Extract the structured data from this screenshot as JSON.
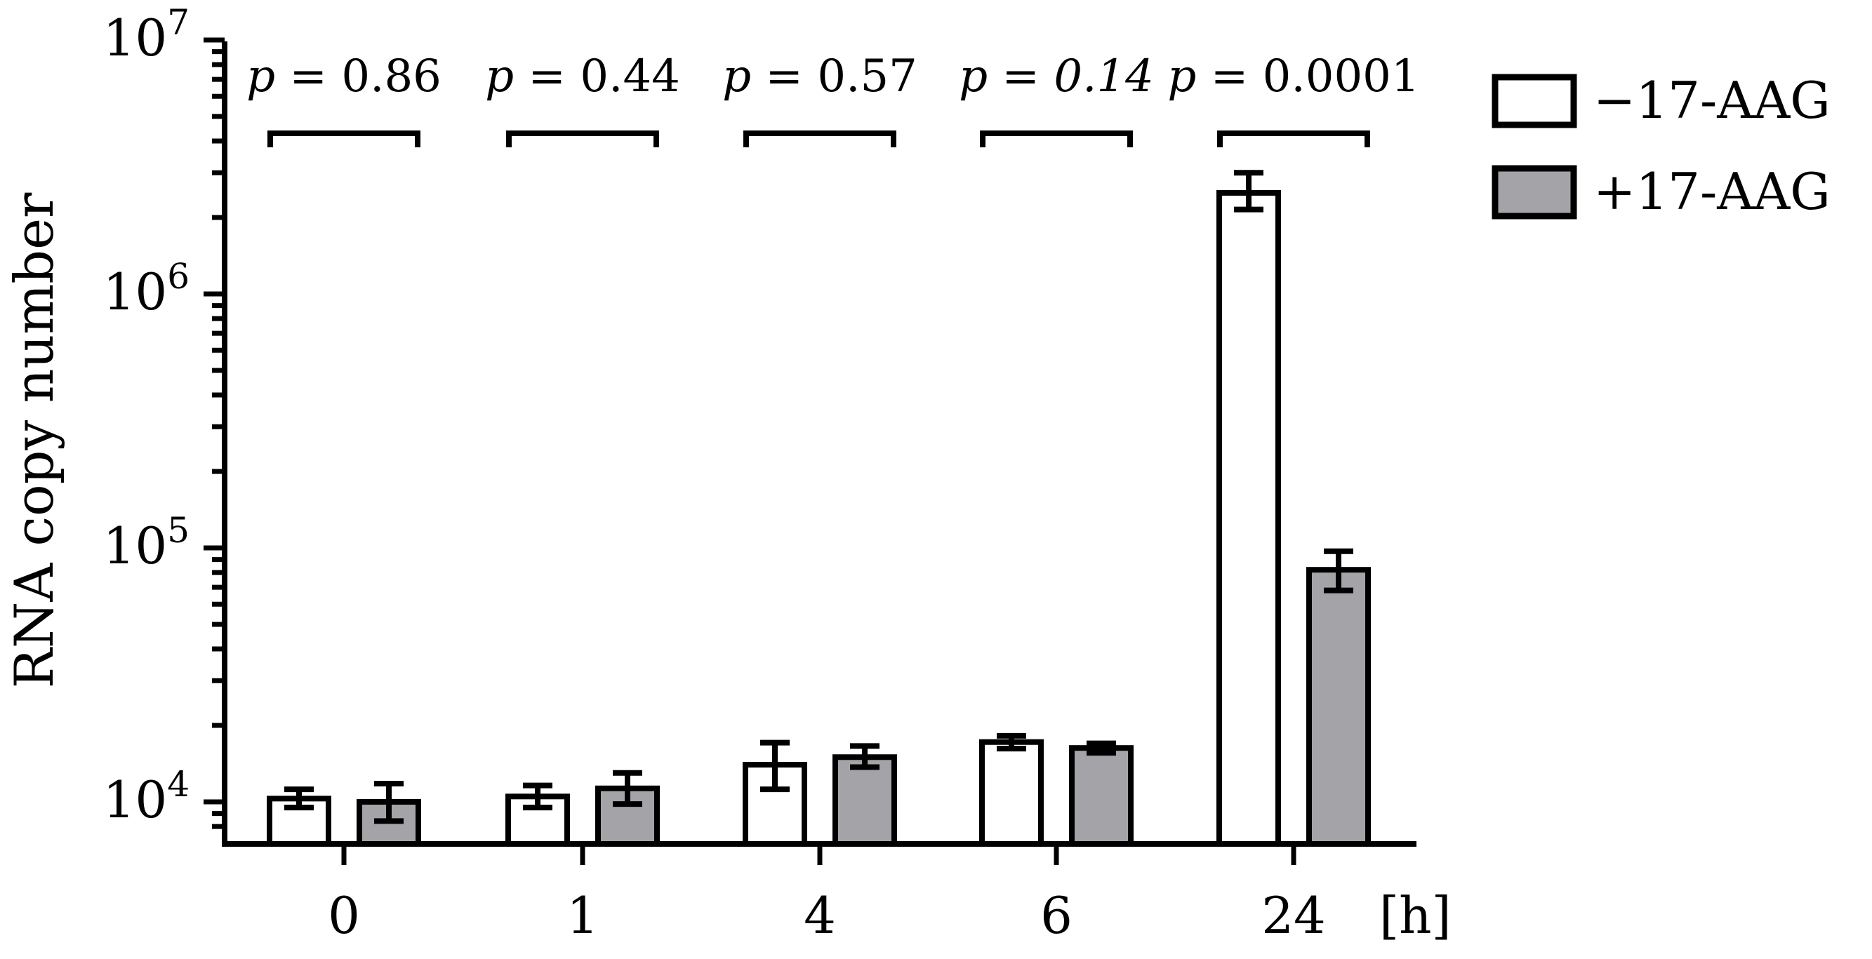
{
  "chart_data": {
    "type": "bar",
    "ylabel": "RNA copy number",
    "x_unit_label": "[h]",
    "yscale": "log",
    "ylim": [
      8000,
      10000000
    ],
    "y_ticks": [
      {
        "base": "10",
        "exp": "4",
        "value": 10000
      },
      {
        "base": "10",
        "exp": "5",
        "value": 100000
      },
      {
        "base": "10",
        "exp": "6",
        "value": 1000000
      },
      {
        "base": "10",
        "exp": "7",
        "value": 10000000
      }
    ],
    "categories": [
      "0",
      "1",
      "4",
      "6",
      "24"
    ],
    "series": [
      {
        "name": "−17-AAG",
        "color": "#ffffff",
        "values": [
          10300,
          10500,
          14000,
          17200,
          2500000
        ],
        "err_low": [
          9500,
          9500,
          11200,
          16200,
          2150000
        ],
        "err_high": [
          11200,
          11600,
          17100,
          18200,
          3000000
        ]
      },
      {
        "name": "+17-AAG",
        "color": "#a4a4a8",
        "values": [
          10000,
          11300,
          15000,
          16300,
          82000
        ],
        "err_low": [
          8400,
          9800,
          13700,
          15600,
          68000
        ],
        "err_high": [
          11800,
          13000,
          16600,
          17000,
          97000
        ]
      }
    ],
    "annotations": [
      {
        "p": "p",
        "eq": " = ",
        "value": "0.86",
        "italic_value": false
      },
      {
        "p": "p",
        "eq": " = ",
        "value": "0.44",
        "italic_value": false
      },
      {
        "p": "p",
        "eq": " = ",
        "value": "0.57",
        "italic_value": false
      },
      {
        "p": "p",
        "eq": " = ",
        "value": "0.14",
        "italic_value": true
      },
      {
        "p": "p",
        "eq": " = ",
        "value": "0.0001",
        "italic_value": false
      }
    ],
    "legend": {
      "position": "top-right"
    },
    "grid": false
  }
}
